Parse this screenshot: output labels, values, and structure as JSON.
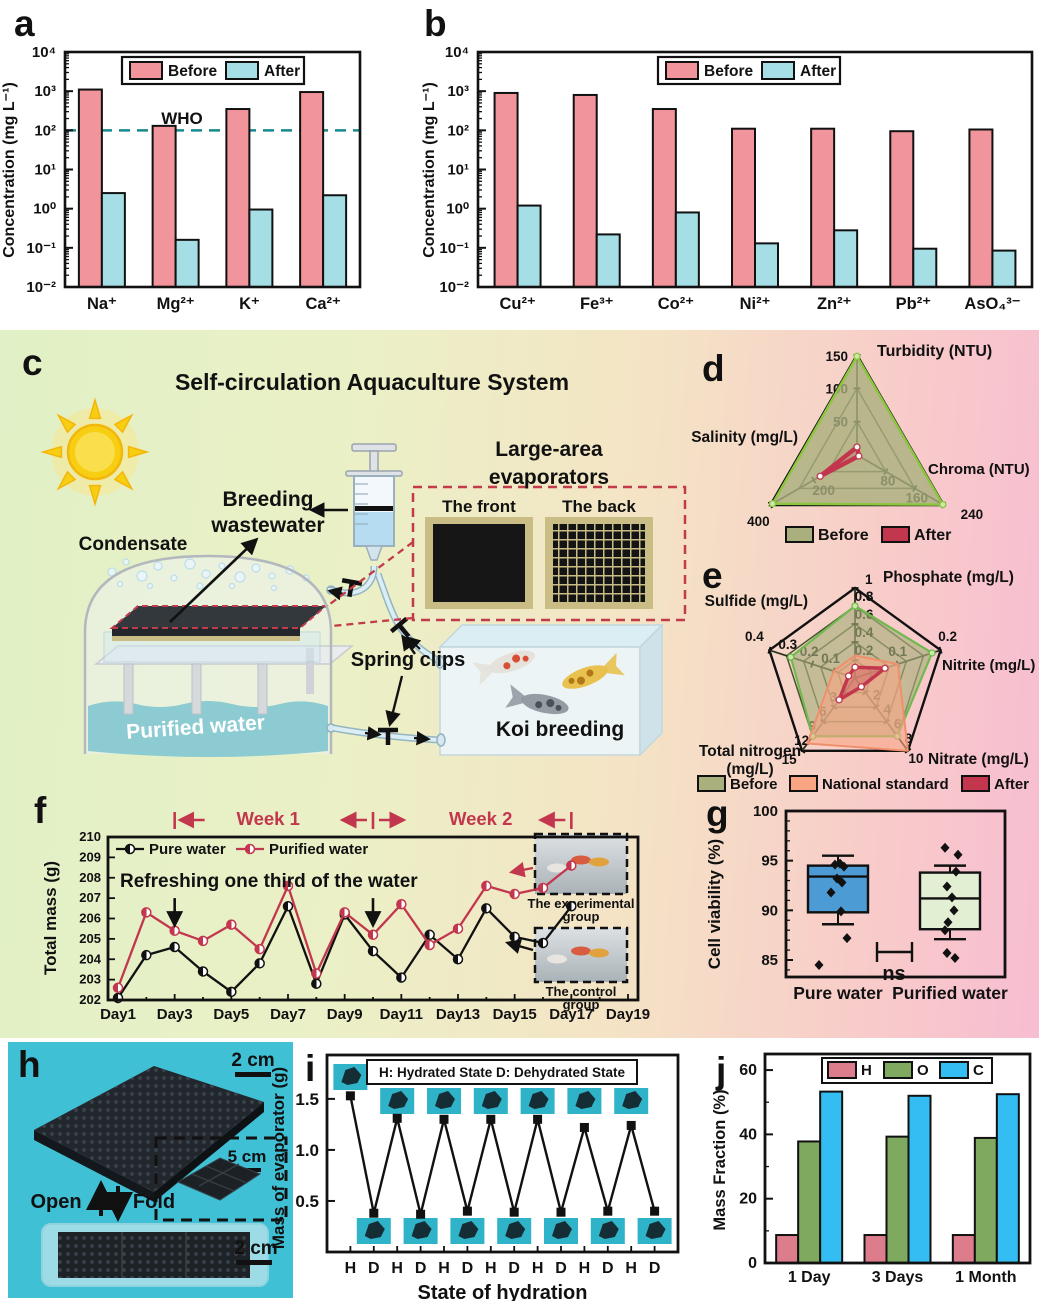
{
  "colors": {
    "before": "#F2949B",
    "after": "#A6DEE6",
    "who_line": "#17898E",
    "pure_water": "#111111",
    "purified_water": "#C2374D",
    "radar_before": "#A9AF7D",
    "national_standard": "#F9A584",
    "radar_after": "#C2374D",
    "box_blue": "#4D9BD5",
    "box_green": "#E3EFD3",
    "bar_h": "#DD7C8B",
    "bar_o": "#7EA95F",
    "bar_c": "#33BDF2",
    "photo_bg": "#3FC0D4"
  },
  "panels": {
    "a": {
      "label": "a"
    },
    "b": {
      "label": "b"
    },
    "c": {
      "label": "c",
      "title": "Self-circulation Aquaculture System",
      "condensate": "Condensate",
      "breeding_line1": "Breeding",
      "breeding_line2": "wastewater",
      "purified_water": "Purified water",
      "spring_clips": "Spring clips",
      "koi_breeding": "Koi breeding",
      "evaporators_line1": "Large-area",
      "evaporators_line2": "evaporators",
      "front": "The front",
      "back": "The back"
    },
    "d": {
      "label": "d"
    },
    "e": {
      "label": "e"
    },
    "f": {
      "label": "f"
    },
    "g": {
      "label": "g"
    },
    "h": {
      "label": "h",
      "scale_top": "2 cm",
      "scale_inset": "5 cm",
      "open": "Open",
      "fold": "Fold",
      "scale_bottom": "2 cm"
    },
    "i": {
      "label": "i"
    },
    "j": {
      "label": "j"
    }
  },
  "chart_data": [
    {
      "id": "a",
      "type": "bar",
      "scale": "log",
      "ylabel": "Concentration (mg L⁻¹)",
      "ylim": [
        0.01,
        10000
      ],
      "ytick_labels": [
        "10⁴",
        "10³",
        "10²",
        "10¹",
        "10⁰",
        "10⁻¹",
        "10⁻²"
      ],
      "categories": [
        "Na⁺",
        "Mg²⁺",
        "K⁺",
        "Ca²⁺"
      ],
      "series": [
        {
          "name": "Before",
          "color": "#F2949B",
          "values": [
            1100,
            130,
            350,
            950
          ]
        },
        {
          "name": "After",
          "color": "#A6DEE6",
          "values": [
            2.5,
            0.16,
            0.95,
            2.2
          ]
        }
      ],
      "reference_line": {
        "label": "WHO",
        "value": 100,
        "color": "#17898E"
      }
    },
    {
      "id": "b",
      "type": "bar",
      "scale": "log",
      "ylabel": "Concentration (mg L⁻¹)",
      "ylim": [
        0.01,
        10000
      ],
      "ytick_labels": [
        "10⁴",
        "10³",
        "10²",
        "10¹",
        "10⁰",
        "10⁻¹",
        "10⁻²"
      ],
      "categories": [
        "Cu²⁺",
        "Fe³⁺",
        "Co²⁺",
        "Ni²⁺",
        "Zn²⁺",
        "Pb²⁺",
        "AsO₄³⁻"
      ],
      "series": [
        {
          "name": "Before",
          "color": "#F2949B",
          "values": [
            900,
            800,
            350,
            110,
            110,
            95,
            105
          ]
        },
        {
          "name": "After",
          "color": "#A6DEE6",
          "values": [
            1.2,
            0.22,
            0.8,
            0.13,
            0.28,
            0.095,
            0.085
          ]
        }
      ]
    },
    {
      "id": "d",
      "type": "radar",
      "levels": 3,
      "axes": [
        {
          "label": "Turbidity (NTU)",
          "max": 150,
          "ticks": [
            50,
            100,
            150
          ]
        },
        {
          "label": "Chroma (NTU)",
          "max": 240,
          "ticks": [
            80,
            160,
            240
          ]
        },
        {
          "label": "Salinity (mg/L)",
          "max": 400,
          "ticks": [
            200,
            400
          ]
        }
      ],
      "series": [
        {
          "name": "Before",
          "values": [
            148,
            238,
            390
          ],
          "fill": "#A9AF7D",
          "fill_opacity": 0.8,
          "stroke": "#8CC63F",
          "stroke_width": 2.5,
          "marker": "#CDE9A8",
          "legend_fill": "#A9AF7D"
        },
        {
          "name": "After",
          "values": [
            12,
            5,
            170
          ],
          "fill": "#C2374D",
          "fill_opacity": 0.22,
          "stroke": "#C2374D",
          "stroke_width": 4.5,
          "marker": "#FFFFFF",
          "legend_fill": "#C2374D"
        }
      ]
    },
    {
      "id": "e",
      "type": "radar",
      "levels": 5,
      "axes": [
        {
          "label": "Phosphate (mg/L)",
          "max": 1.0,
          "ticks": [
            0.2,
            0.4,
            0.6,
            0.8,
            1.0
          ]
        },
        {
          "label": "Nitrite (mg/L)",
          "max": 0.2,
          "ticks": [
            0.1,
            0.2
          ]
        },
        {
          "label": "Nitrate (mg/L)",
          "max": 10,
          "ticks": [
            2,
            4,
            6,
            8,
            10
          ]
        },
        {
          "label": "Total nitrogen\n(mg/L)",
          "max": 15,
          "ticks": [
            3,
            6,
            9,
            12,
            15
          ]
        },
        {
          "label": "Sulfide (mg/L)",
          "max": 0.4,
          "ticks": [
            0.1,
            0.2,
            0.3,
            0.4
          ]
        }
      ],
      "series": [
        {
          "name": "Before",
          "values": [
            0.8,
            0.18,
            8,
            12,
            0.3
          ],
          "fill": "#A9AF7D",
          "fill_opacity": 0.65,
          "stroke": "#6FB94E",
          "stroke_width": 2.2,
          "marker": "#CDE9A8",
          "legend_fill": "#A9AF7D"
        },
        {
          "name": "National standard",
          "values": [
            0.25,
            0.1,
            10,
            13.5,
            0.1
          ],
          "fill": "#F9A584",
          "fill_opacity": 0.6,
          "stroke": "#F0906B",
          "stroke_width": 2,
          "legend_fill": "#F9A584"
        },
        {
          "name": "After",
          "values": [
            0.12,
            0.07,
            1.2,
            4.5,
            0.03
          ],
          "fill": "#C2374D",
          "fill_opacity": 0.3,
          "stroke": "#C2374D",
          "stroke_width": 3.5,
          "marker": "#FFFFFF",
          "legend_fill": "#C2374D"
        }
      ]
    },
    {
      "id": "f",
      "type": "line",
      "ylabel": "Total mass (g)",
      "ylim": [
        202,
        210
      ],
      "xtick_labels": [
        "Day1",
        "Day3",
        "Day5",
        "Day7",
        "Day9",
        "Day11",
        "Day13",
        "Day15",
        "Day17",
        "Day19"
      ],
      "series": [
        {
          "name": "Pure water",
          "color": "#111111",
          "values": [
            202.1,
            204.2,
            204.6,
            203.4,
            202.4,
            203.8,
            206.6,
            202.8,
            206.2,
            204.4,
            203.1,
            205.2,
            204.0,
            206.5,
            205.1,
            204.8,
            206.6
          ]
        },
        {
          "name": "Purified water",
          "color": "#C2374D",
          "values": [
            202.6,
            206.3,
            205.4,
            204.9,
            205.7,
            204.5,
            207.6,
            203.3,
            206.3,
            205.2,
            206.7,
            204.7,
            205.5,
            207.6,
            207.2,
            207.5,
            208.6
          ]
        }
      ],
      "annotations": {
        "refresh": "Refreshing one third of the water",
        "refresh_days": [
          3,
          10
        ],
        "weeks": [
          {
            "t": "|←",
            "day": 3
          },
          {
            "t": "Week 1",
            "day": 6.3
          },
          {
            "t": "←|→",
            "day": 10
          },
          {
            "t": "Week 2",
            "day": 13.8
          },
          {
            "t": "←|",
            "day": 17
          }
        ],
        "insets": [
          {
            "label": "The experimental group"
          },
          {
            "label": "The control group"
          }
        ]
      }
    },
    {
      "id": "g",
      "type": "box",
      "ylabel": "Cell viability (%)",
      "yticks": [
        85,
        90,
        95,
        100
      ],
      "sig_label": "ns",
      "groups": [
        {
          "name": "Pure water",
          "color": "#4D9BD5",
          "q1": 89.8,
          "q3": 94.5,
          "median": 93.4,
          "lo": 88.6,
          "hi": 95.5,
          "points": [
            94.7,
            94.6,
            94.4,
            93.2,
            92.8,
            91.8,
            89.9,
            87.2,
            84.5
          ]
        },
        {
          "name": "Purified water",
          "color": "#E3EFD3",
          "q1": 88.1,
          "q3": 93.8,
          "median": 91.2,
          "lo": 87.1,
          "hi": 94.5,
          "points": [
            96.3,
            95.6,
            93.9,
            92.4,
            91.3,
            90.0,
            88.8,
            88.0,
            85.7,
            85.2
          ]
        }
      ]
    },
    {
      "id": "i",
      "type": "line",
      "ylabel": "Mass of evaporator (g)",
      "xlabel": "State of hydration",
      "ytick_labels": [
        "0.5",
        "1.0",
        "1.5"
      ],
      "yticks": [
        0.5,
        1.0,
        1.5
      ],
      "legend": "H: Hydrated State D: Dehydrated State",
      "color": "#111111",
      "categories": [
        "H",
        "D",
        "H",
        "D",
        "H",
        "D",
        "H",
        "D",
        "H",
        "D",
        "H",
        "D",
        "H",
        "D"
      ],
      "values": [
        1.53,
        0.38,
        1.31,
        0.37,
        1.3,
        0.4,
        1.3,
        0.39,
        1.3,
        0.39,
        1.22,
        0.4,
        1.24,
        0.4
      ]
    },
    {
      "id": "j",
      "type": "bar",
      "scale": "linear",
      "ylabel": "Mass Fraction (%)",
      "ylim": [
        0,
        65
      ],
      "yticks": [
        0,
        20,
        40,
        60
      ],
      "yticks_minor": [
        10,
        30,
        50
      ],
      "categories": [
        "1 Day",
        "3 Days",
        "1 Month"
      ],
      "series": [
        {
          "name": "H",
          "color": "#DD7C8B",
          "values": [
            8.7,
            8.7,
            8.7
          ]
        },
        {
          "name": "O",
          "color": "#7EA95F",
          "values": [
            37.8,
            39.3,
            38.9
          ]
        },
        {
          "name": "C",
          "color": "#33BDF2",
          "values": [
            53.3,
            52.0,
            52.5
          ]
        }
      ]
    }
  ]
}
